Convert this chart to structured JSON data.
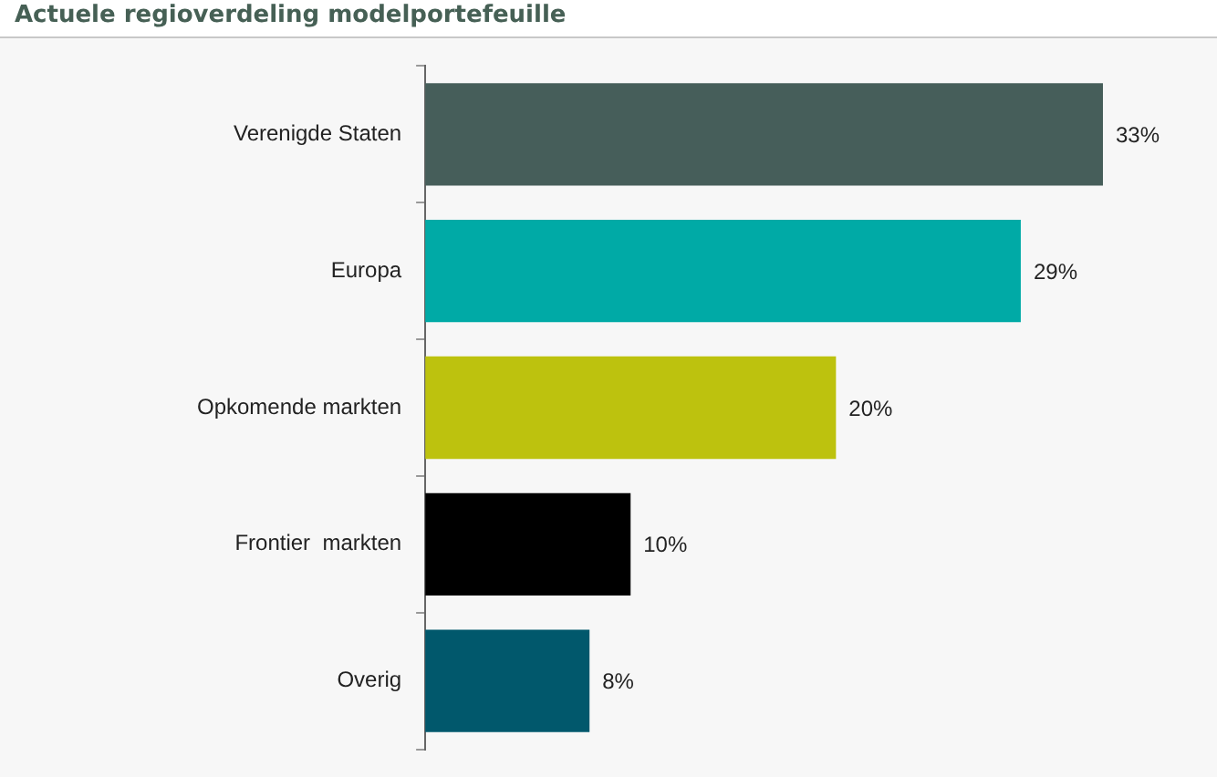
{
  "chart_data": {
    "type": "bar",
    "orientation": "horizontal",
    "title": "Actuele regioverdeling modelportefeuille",
    "categories": [
      "Verenigde Staten",
      "Europa",
      "Opkomende markten",
      "Frontier  markten",
      "Overig"
    ],
    "values": [
      33,
      29,
      20,
      10,
      8
    ],
    "colors": [
      "#465e5a",
      "#00aaa6",
      "#bdc20e",
      "#000000",
      "#01586c"
    ],
    "value_labels": [
      "33%",
      "29%",
      "20%",
      "10%",
      "8%"
    ],
    "tick_labels": "y",
    "grid": false,
    "legend": false
  }
}
